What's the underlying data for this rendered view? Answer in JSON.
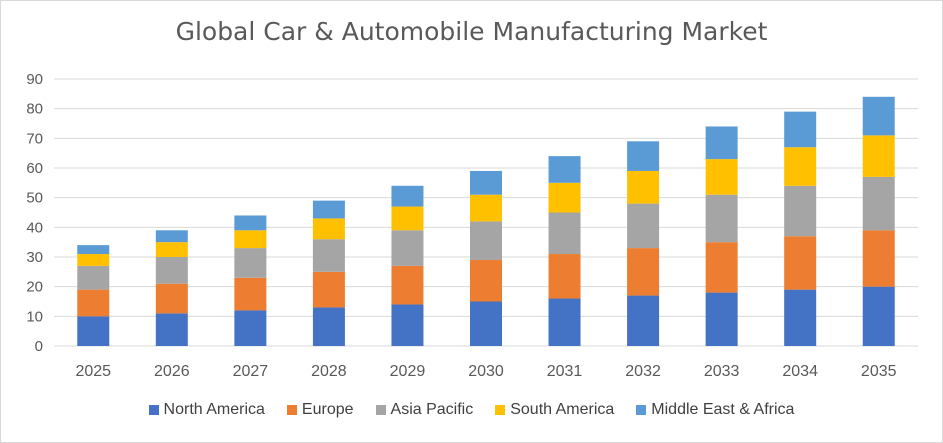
{
  "chart_data": {
    "type": "bar",
    "stacked": true,
    "title": "Global Car & Automobile Manufacturing Market",
    "xlabel": "",
    "ylabel": "",
    "ylim": [
      0,
      90
    ],
    "yticks": [
      0,
      10,
      20,
      30,
      40,
      50,
      60,
      70,
      80,
      90
    ],
    "grid": true,
    "legend_position": "bottom",
    "categories": [
      "2025",
      "2026",
      "2027",
      "2028",
      "2029",
      "2030",
      "2031",
      "2032",
      "2033",
      "2034",
      "2035"
    ],
    "series": [
      {
        "name": "North America",
        "color": "#4472c4",
        "values": [
          10,
          11,
          12,
          13,
          14,
          15,
          16,
          17,
          18,
          19,
          20
        ]
      },
      {
        "name": "Europe",
        "color": "#ed7d31",
        "values": [
          9,
          10,
          11,
          12,
          13,
          14,
          15,
          16,
          17,
          18,
          19
        ]
      },
      {
        "name": "Asia Pacific",
        "color": "#a5a5a5",
        "values": [
          8,
          9,
          10,
          11,
          12,
          13,
          14,
          15,
          16,
          17,
          18
        ]
      },
      {
        "name": "South America",
        "color": "#ffc000",
        "values": [
          4,
          5,
          6,
          7,
          8,
          9,
          10,
          11,
          12,
          13,
          14
        ]
      },
      {
        "name": "Middle East & Africa",
        "color": "#5b9bd5",
        "values": [
          3,
          4,
          5,
          6,
          7,
          8,
          9,
          10,
          11,
          12,
          13
        ]
      }
    ]
  }
}
